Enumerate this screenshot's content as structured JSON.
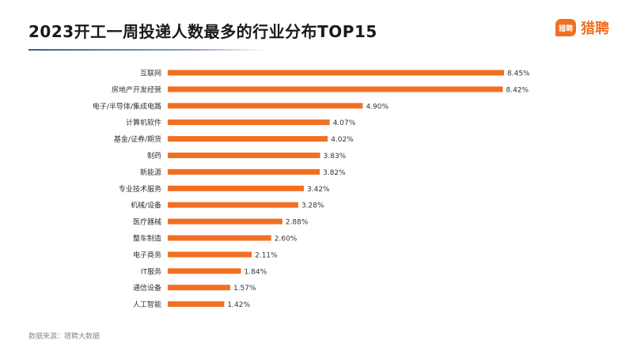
{
  "title": "2023开工一周投递人数最多的行业分布TOP15",
  "logo": {
    "badge": "猎聘",
    "text": "猎聘",
    "icon": "speech-bubble-icon",
    "color": "#f26f21"
  },
  "source": "数据来源：猎聘大数据",
  "colors": {
    "bar": "#f26f21",
    "label": "#333333",
    "title_line": "#3d5a9a"
  },
  "chart_data": {
    "type": "bar",
    "orientation": "horizontal",
    "title": "2023开工一周投递人数最多的行业分布TOP15",
    "categories": [
      "互联网",
      "房地产开发经营",
      "电子/半导体/集成电路",
      "计算机软件",
      "基金/证券/期货",
      "制药",
      "新能源",
      "专业技术服务",
      "机械/设备",
      "医疗器械",
      "整车制造",
      "电子商务",
      "IT服务",
      "通信设备",
      "人工智能"
    ],
    "values": [
      8.45,
      8.42,
      4.9,
      4.07,
      4.02,
      3.83,
      3.82,
      3.42,
      3.28,
      2.88,
      2.6,
      2.11,
      1.84,
      1.57,
      1.42
    ],
    "value_labels": [
      "8.45%",
      "8.42%",
      "4.90%",
      "4.07%",
      "4.02%",
      "3.83%",
      "3.82%",
      "3.42%",
      "3.28%",
      "2.88%",
      "2.60%",
      "2.11%",
      "1.84%",
      "1.57%",
      "1.42%"
    ],
    "unit": "%",
    "xlim": [
      0,
      8.45
    ],
    "grid": false,
    "legend": false
  }
}
